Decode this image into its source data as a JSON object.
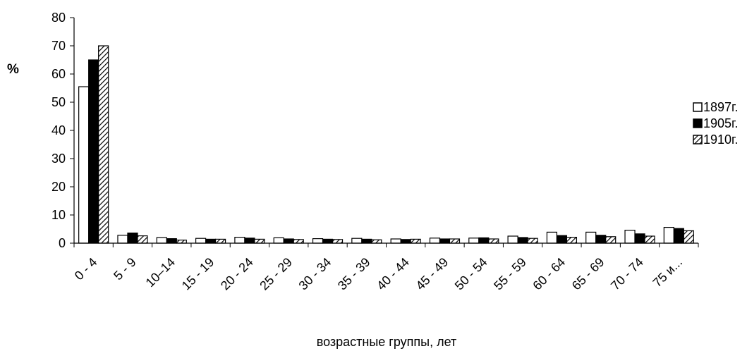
{
  "chart_data": {
    "type": "bar",
    "ylabel": "%",
    "xlabel": "возрастные группы, лет",
    "ylim": [
      0,
      80
    ],
    "yticks": [
      0,
      10,
      20,
      30,
      40,
      50,
      60,
      70,
      80
    ],
    "legend_position": "right",
    "categories": [
      "0 - 4",
      "5 - 9",
      "10–14",
      "15 - 19",
      "20 - 24",
      "25 - 29",
      "30 - 34",
      "35 - 39",
      "40 - 44",
      "45 - 49",
      "50 - 54",
      "55 - 59",
      "60 - 64",
      "65 - 69",
      "70 - 74",
      "75 и..."
    ],
    "series": [
      {
        "name": "1897г.",
        "fill": "white",
        "values": [
          55.5,
          2.8,
          2.0,
          1.7,
          2.1,
          1.9,
          1.6,
          1.7,
          1.5,
          1.8,
          1.8,
          2.5,
          3.9,
          3.9,
          4.6,
          5.6
        ]
      },
      {
        "name": "1905г.",
        "fill": "black",
        "values": [
          65.0,
          3.6,
          1.6,
          1.4,
          1.8,
          1.5,
          1.4,
          1.4,
          1.3,
          1.5,
          1.9,
          2.0,
          2.7,
          2.8,
          3.3,
          5.2
        ]
      },
      {
        "name": "1910г.",
        "fill": "hatch",
        "values": [
          70.0,
          2.6,
          1.1,
          1.4,
          1.4,
          1.3,
          1.3,
          1.2,
          1.4,
          1.5,
          1.5,
          1.7,
          2.1,
          2.3,
          2.5,
          4.4
        ]
      }
    ]
  }
}
